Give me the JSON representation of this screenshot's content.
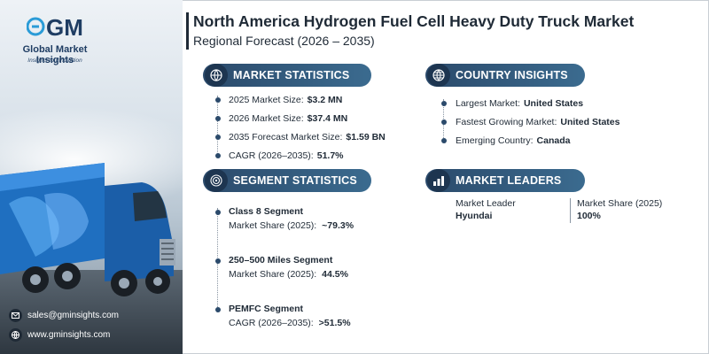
{
  "brand": {
    "name": "Global Market Insights",
    "tagline": "Insights to Innovation"
  },
  "header": {
    "title": "North America Hydrogen Fuel Cell Heavy Duty Truck Market",
    "subtitle": "Regional Forecast (2026 – 2035)"
  },
  "market_statistics": {
    "heading": "MARKET STATISTICS",
    "items": [
      {
        "label": "2025 Market Size:",
        "value": "$3.2 MN"
      },
      {
        "label": "2026 Market Size:",
        "value": "$37.4 MN"
      },
      {
        "label": "2035 Forecast Market Size:",
        "value": "$1.59 BN"
      },
      {
        "label": "CAGR (2026–2035):",
        "value": "51.7%"
      }
    ]
  },
  "country_insights": {
    "heading": "COUNTRY INSIGHTS",
    "items": [
      {
        "label": "Largest Market:",
        "value": "United States"
      },
      {
        "label": "Fastest Growing Market:",
        "value": "United States"
      },
      {
        "label": "Emerging Country:",
        "value": "Canada"
      }
    ]
  },
  "segment_statistics": {
    "heading": "SEGMENT STATISTICS",
    "items": [
      {
        "name": "Class 8 Segment",
        "label": "Market Share (2025):",
        "value": "~79.3%"
      },
      {
        "name": "250–500 Miles Segment",
        "label": "Market Share (2025):",
        "value": "44.5%"
      },
      {
        "name": "PEMFC Segment",
        "label": "CAGR (2026–2035):",
        "value": ">51.5%"
      }
    ]
  },
  "market_leaders": {
    "heading": "MARKET LEADERS",
    "leader_label": "Market Leader",
    "leader_value": "Hyundai",
    "share_label": "Market Share (2025)",
    "share_value": "100%"
  },
  "contact": {
    "email": "sales@gminsights.com",
    "website": "www.gminsights.com"
  },
  "colors": {
    "section_header": "#2b4a6b",
    "text": "#1f2a36",
    "accent": "#3b6b8f"
  },
  "icons": {
    "market_statistics": "globe-chart-icon",
    "country_insights": "globe-icon",
    "segment_statistics": "target-icon",
    "market_leaders": "bar-chart-icon",
    "email": "envelope-icon",
    "website": "globe-icon"
  }
}
